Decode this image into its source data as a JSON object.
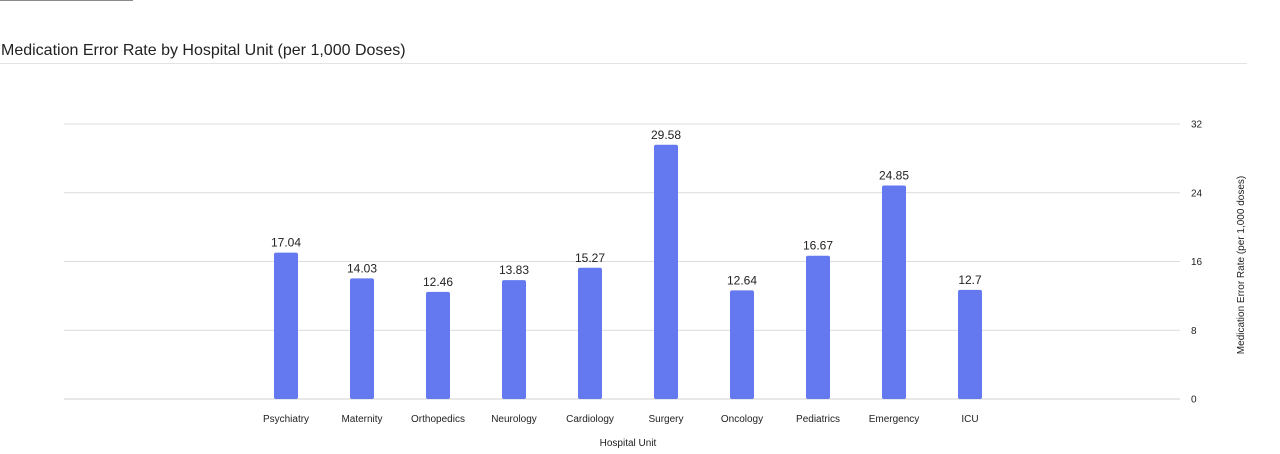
{
  "chart_data": {
    "type": "bar",
    "title": "Medication Error Rate by Hospital Unit (per 1,000 Doses)",
    "xlabel": "Hospital Unit",
    "ylabel": "Medication Error Rate (per 1,000 doses)",
    "categories": [
      "Psychiatry",
      "Maternity",
      "Orthopedics",
      "Neurology",
      "Cardiology",
      "Surgery",
      "Oncology",
      "Pediatrics",
      "Emergency",
      "ICU"
    ],
    "values": [
      17.04,
      14.03,
      12.46,
      13.83,
      15.27,
      29.58,
      12.64,
      16.67,
      24.85,
      12.7
    ],
    "ylim": [
      0,
      32
    ],
    "yticks": [
      0,
      8,
      16,
      24,
      32
    ],
    "y_axis_side": "right",
    "grid": true,
    "data_labels": true,
    "bar_color": "#6479f0"
  }
}
